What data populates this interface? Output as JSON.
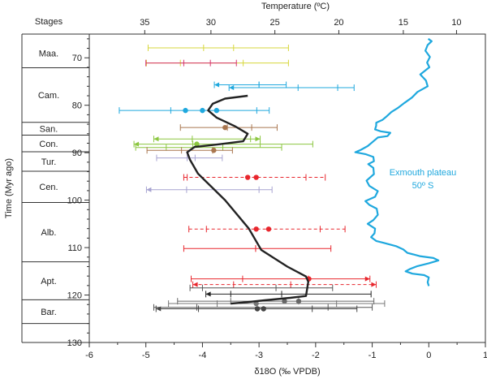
{
  "chart_data": {
    "type": "scatter",
    "stages_header": "Stages",
    "xlabel": "δ18O (‰ VPDB)",
    "ylabel": "Time (Myr ago)",
    "top_axis_label": "Temperature (ºC)",
    "xlim": [
      -6,
      1
    ],
    "ylim": [
      130,
      65
    ],
    "x_ticks": [
      -6,
      -5,
      -4,
      -3,
      -2,
      -1,
      0,
      1
    ],
    "y_ticks": [
      70,
      80,
      90,
      100,
      110,
      120,
      130
    ],
    "temperature_ticks": [
      {
        "label": "35",
        "d18o": -5.02
      },
      {
        "label": "30",
        "d18o": -3.85
      },
      {
        "label": "25",
        "d18o": -2.72
      },
      {
        "label": "20",
        "d18o": -1.59
      },
      {
        "label": "15",
        "d18o": -0.45
      },
      {
        "label": "10",
        "d18o": 0.49
      }
    ],
    "stages": [
      {
        "name": "Maa.",
        "top": 66.0,
        "bottom": 72.1
      },
      {
        "name": "Cam.",
        "top": 72.1,
        "bottom": 83.6
      },
      {
        "name": "San.",
        "top": 83.6,
        "bottom": 86.3
      },
      {
        "name": "Con.",
        "top": 86.3,
        "bottom": 89.8
      },
      {
        "name": "Tur.",
        "top": 89.8,
        "bottom": 93.9
      },
      {
        "name": "Cen.",
        "top": 93.9,
        "bottom": 100.5
      },
      {
        "name": "Alb.",
        "top": 100.5,
        "bottom": 113.0
      },
      {
        "name": "Apt.",
        "top": 113.0,
        "bottom": 121.0
      },
      {
        "name": "Bar.",
        "top": 121.0,
        "bottom": 126.0
      }
    ],
    "ranges": [
      {
        "y": 67.9,
        "x1": -4.96,
        "x2": -3.98,
        "x3": -3.45,
        "x4": -2.48,
        "color": "#d7d73c",
        "dashed": false,
        "dots": [],
        "arrow": "none"
      },
      {
        "y": 71.1,
        "x1": -4.99,
        "x2": -4.39,
        "x3": -3.28,
        "x4": -2.48,
        "color": "#d7d73c",
        "dashed": false,
        "dots": [],
        "arrow": "none"
      },
      {
        "y": 71.1,
        "x1": -5.0,
        "x2": -4.33,
        "x3": -3.86,
        "x4": -3.4,
        "color": "#d6336c",
        "dashed": false,
        "dots": [],
        "arrow": "none"
      },
      {
        "y": 75.7,
        "x1": -3.79,
        "x2": -3.0,
        "x3": -3.0,
        "x4": -2.52,
        "color": "#1fa8de",
        "dashed": false,
        "dots": [],
        "arrow": "left"
      },
      {
        "y": 76.3,
        "x1": -3.53,
        "x2": -2.31,
        "x3": -1.61,
        "x4": -1.32,
        "color": "#1fa8de",
        "dashed": false,
        "dots": [],
        "arrow": "left"
      },
      {
        "y": 81.1,
        "x1": -5.47,
        "x2": -4.56,
        "x3": -3.04,
        "x4": -2.82,
        "color": "#1fa8de",
        "dashed": false,
        "dots": [
          -4.3,
          -4.0,
          -3.75
        ],
        "arrow": "none"
      },
      {
        "y": 84.7,
        "x1": -4.39,
        "x2": -3.56,
        "x3": -3.13,
        "x4": -2.68,
        "color": "#a9764f",
        "dashed": false,
        "dots": [
          -3.6
        ],
        "arrow": "none"
      },
      {
        "y": 87.1,
        "x1": -4.86,
        "x2": -4.18,
        "x3": -3.15,
        "x4": -2.98,
        "color": "#8bc63f",
        "dashed": false,
        "dots": [],
        "arrow": "both"
      },
      {
        "y": 88.2,
        "x1": -5.21,
        "x2": -4.17,
        "x3": -2.98,
        "x4": -2.05,
        "color": "#8bc63f",
        "dashed": false,
        "dots": [
          -4.1
        ],
        "arrow": "left"
      },
      {
        "y": 88.9,
        "x1": -5.18,
        "x2": -4.64,
        "x3": -3.64,
        "x4": -2.6,
        "color": "#8bc63f",
        "dashed": false,
        "dots": [],
        "arrow": "none"
      },
      {
        "y": 89.5,
        "x1": -4.98,
        "x2": -4.37,
        "x3": -3.82,
        "x4": -3.47,
        "color": "#a9764f",
        "dashed": false,
        "dots": [
          -3.8
        ],
        "arrow": "none"
      },
      {
        "y": 91.1,
        "x1": -4.81,
        "x2": -4.27,
        "x3": -4.13,
        "x4": -3.65,
        "color": "#a7a3d1",
        "dashed": false,
        "dots": [],
        "arrow": "none"
      },
      {
        "y": 95.2,
        "x1": -4.33,
        "x2": -4.27,
        "x3": -2.17,
        "x4": -1.83,
        "color": "#e8262d",
        "dashed": true,
        "dots": [
          -3.2,
          -3.05
        ],
        "arrow": "none"
      },
      {
        "y": 97.8,
        "x1": -4.99,
        "x2": -4.28,
        "x3": -3.0,
        "x4": -2.77,
        "color": "#a7a3d1",
        "dashed": false,
        "dots": [],
        "arrow": "left"
      },
      {
        "y": 106.1,
        "x1": -4.24,
        "x2": -3.93,
        "x3": -1.92,
        "x4": -1.48,
        "color": "#e8262d",
        "dashed": true,
        "dots": [
          -3.05,
          -2.83
        ],
        "arrow": "none"
      },
      {
        "y": 110.2,
        "x1": -4.33,
        "x2": -3.06,
        "x3": -3.06,
        "x4": -1.73,
        "color": "#e8262d",
        "dashed": false,
        "dots": [],
        "arrow": "none"
      },
      {
        "y": 116.6,
        "x1": -4.2,
        "x2": -3.29,
        "x3": -2.13,
        "x4": -1.04,
        "color": "#e8262d",
        "dashed": false,
        "dots": [
          -2.12
        ],
        "arrow": "right"
      },
      {
        "y": 117.8,
        "x1": -4.17,
        "x2": -3.45,
        "x3": -2.44,
        "x4": -0.93,
        "color": "#e8262d",
        "dashed": true,
        "dots": [],
        "arrow": "both"
      },
      {
        "y": 118.5,
        "x1": -4.22,
        "x2": -4.0,
        "x3": -2.7,
        "x4": -1.7,
        "color": "#555555",
        "dashed": false,
        "dots": [],
        "arrow": "none"
      },
      {
        "y": 119.8,
        "x1": -3.94,
        "x2": -3.5,
        "x3": -2.6,
        "x4": -1.02,
        "color": "#222222",
        "dashed": false,
        "dots": [],
        "arrow": "left"
      },
      {
        "y": 121.3,
        "x1": -4.44,
        "x2": -3.5,
        "x3": -2.3,
        "x4": -0.97,
        "color": "#666666",
        "dashed": false,
        "dots": [
          -2.55,
          -2.3
        ],
        "arrow": "none"
      },
      {
        "y": 121.8,
        "x1": -4.6,
        "x2": -3.74,
        "x3": -1.63,
        "x4": -0.78,
        "color": "#777777",
        "dashed": false,
        "dots": [
          -3.05
        ],
        "arrow": "none"
      },
      {
        "y": 122.6,
        "x1": -4.86,
        "x2": -4.1,
        "x3": -1.78,
        "x4": -1.0,
        "color": "#555555",
        "dashed": false,
        "dots": [],
        "arrow": "none"
      },
      {
        "y": 122.9,
        "x1": -4.82,
        "x2": -4.07,
        "x3": -2.06,
        "x4": -1.27,
        "color": "#444444",
        "dashed": false,
        "dots": [
          -3.03,
          -2.92
        ],
        "arrow": "left"
      }
    ],
    "black_curve": [
      [
        -3.2,
        78.0
      ],
      [
        -3.6,
        78.6
      ],
      [
        -3.82,
        79.7
      ],
      [
        -3.9,
        81.1
      ],
      [
        -3.75,
        82.6
      ],
      [
        -3.43,
        84.4
      ],
      [
        -3.2,
        86.0
      ],
      [
        -3.28,
        87.6
      ],
      [
        -3.68,
        88.2
      ],
      [
        -4.14,
        88.8
      ],
      [
        -4.27,
        89.9
      ],
      [
        -4.22,
        91.5
      ],
      [
        -4.08,
        94.4
      ],
      [
        -3.6,
        100.0
      ],
      [
        -3.18,
        106.0
      ],
      [
        -2.96,
        110.5
      ],
      [
        -2.5,
        114.0
      ],
      [
        -2.17,
        116.1
      ],
      [
        -2.13,
        117.2
      ],
      [
        -2.17,
        120.2
      ],
      [
        -2.45,
        120.6
      ],
      [
        -2.9,
        121.1
      ],
      [
        -3.3,
        121.6
      ],
      [
        -3.5,
        121.8
      ]
    ],
    "curve_label_lines": [
      "Exmouth plateau",
      "50º S"
    ],
    "exmouth_curve": [
      [
        -0.01,
        66.0
      ],
      [
        0.05,
        66.5
      ],
      [
        -0.02,
        67.3
      ],
      [
        -0.06,
        68.5
      ],
      [
        0.02,
        69.8
      ],
      [
        -0.03,
        71.0
      ],
      [
        0.01,
        72.0
      ],
      [
        -0.15,
        73.5
      ],
      [
        -0.05,
        74.8
      ],
      [
        -0.02,
        76.0
      ],
      [
        -0.2,
        77.2
      ],
      [
        -0.3,
        78.4
      ],
      [
        -0.43,
        79.5
      ],
      [
        -0.55,
        80.6
      ],
      [
        -0.66,
        81.4
      ],
      [
        -0.74,
        82.3
      ],
      [
        -0.82,
        83.1
      ],
      [
        -0.93,
        83.7
      ],
      [
        -0.93,
        84.3
      ],
      [
        -0.95,
        85.1
      ],
      [
        -0.85,
        85.5
      ],
      [
        -0.68,
        85.8
      ],
      [
        -0.73,
        86.5
      ],
      [
        -0.9,
        86.8
      ],
      [
        -1.0,
        87.8
      ],
      [
        -1.08,
        88.6
      ],
      [
        -1.2,
        89.4
      ],
      [
        -1.3,
        89.9
      ],
      [
        -1.12,
        90.3
      ],
      [
        -0.98,
        90.9
      ],
      [
        -0.97,
        91.8
      ],
      [
        -1.07,
        92.4
      ],
      [
        -0.98,
        93.2
      ],
      [
        -0.97,
        94.5
      ],
      [
        -1.1,
        95.9
      ],
      [
        -1.05,
        97.0
      ],
      [
        -0.9,
        98.1
      ],
      [
        -0.95,
        99.3
      ],
      [
        -1.12,
        100.2
      ],
      [
        -1.05,
        101.0
      ],
      [
        -0.92,
        101.8
      ],
      [
        -0.9,
        103.1
      ],
      [
        -0.98,
        104.2
      ],
      [
        -1.08,
        105.0
      ],
      [
        -0.95,
        106.0
      ],
      [
        -0.96,
        107.0
      ],
      [
        -1.02,
        107.8
      ],
      [
        -0.93,
        108.6
      ],
      [
        -0.8,
        109.0
      ],
      [
        -0.58,
        109.7
      ],
      [
        -0.45,
        110.4
      ],
      [
        -0.38,
        111.1
      ],
      [
        -0.16,
        111.8
      ],
      [
        0.08,
        112.2
      ],
      [
        0.17,
        112.7
      ],
      [
        0.0,
        113.3
      ],
      [
        -0.2,
        113.9
      ],
      [
        -0.33,
        114.5
      ],
      [
        -0.41,
        115.0
      ],
      [
        -0.29,
        115.5
      ],
      [
        -0.08,
        115.8
      ],
      [
        0.0,
        116.3
      ],
      [
        -0.02,
        117.3
      ],
      [
        0.0,
        118.1
      ]
    ],
    "colors": {
      "curve": "#1fa8de",
      "fit_line": "#222222",
      "axis": "#333333"
    }
  }
}
